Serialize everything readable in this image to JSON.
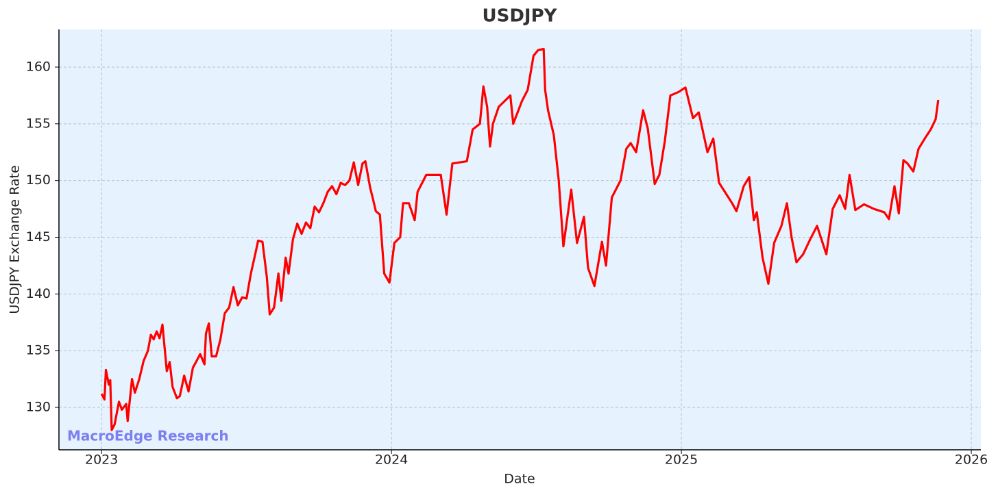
{
  "chart_data": {
    "type": "line",
    "title": "USDJPY",
    "x_label": "Date",
    "y_label": "USDJPY Exchange Rate",
    "watermark": "MacroEdge Research",
    "color": "#ff0000",
    "grid": true,
    "x": [
      2023.0,
      2023.01,
      2023.015,
      2023.025,
      2023.03,
      2023.035,
      2023.045,
      2023.06,
      2023.07,
      2023.085,
      2023.09,
      2023.105,
      2023.115,
      2023.13,
      2023.145,
      2023.16,
      2023.17,
      2023.18,
      2023.19,
      2023.2,
      2023.21,
      2023.225,
      2023.235,
      2023.245,
      2023.26,
      2023.27,
      2023.285,
      2023.3,
      2023.315,
      2023.33,
      2023.34,
      2023.355,
      2023.36,
      2023.37,
      2023.38,
      2023.395,
      2023.41,
      2023.425,
      2023.44,
      2023.455,
      2023.47,
      2023.485,
      2023.5,
      2023.515,
      2023.53,
      2023.54,
      2023.555,
      2023.57,
      2023.58,
      2023.595,
      2023.61,
      2023.62,
      2023.635,
      2023.645,
      2023.66,
      2023.675,
      2023.69,
      2023.705,
      2023.72,
      2023.735,
      2023.75,
      2023.765,
      2023.78,
      2023.795,
      2023.81,
      2023.825,
      2023.84,
      2023.855,
      2023.87,
      2023.885,
      2023.9,
      2023.91,
      2023.927,
      2023.935,
      2023.946,
      2023.96,
      2023.975,
      2023.993,
      2024.01,
      2024.03,
      2024.04,
      2024.06,
      2024.08,
      2024.09,
      2024.12,
      2024.17,
      2024.19,
      2024.21,
      2024.26,
      2024.28,
      2024.305,
      2024.317,
      2024.33,
      2024.34,
      2024.35,
      2024.37,
      2024.39,
      2024.41,
      2024.42,
      2024.45,
      2024.47,
      2024.49,
      2024.506,
      2024.525,
      2024.53,
      2024.54,
      2024.56,
      2024.577,
      2024.593,
      2024.608,
      2024.62,
      2024.64,
      2024.664,
      2024.678,
      2024.7,
      2024.726,
      2024.74,
      2024.76,
      2024.79,
      2024.81,
      2024.825,
      2024.844,
      2024.868,
      2024.884,
      2024.908,
      2024.924,
      2024.943,
      2024.962,
      2024.99,
      2025.014,
      2025.04,
      2025.06,
      2025.09,
      2025.11,
      2025.13,
      2025.15,
      2025.175,
      2025.19,
      2025.215,
      2025.234,
      2025.25,
      2025.26,
      2025.28,
      2025.3,
      2025.32,
      2025.345,
      2025.364,
      2025.38,
      2025.397,
      2025.42,
      2025.444,
      2025.468,
      2025.5,
      2025.522,
      2025.546,
      2025.565,
      2025.58,
      2025.6,
      2025.63,
      2025.664,
      2025.7,
      2025.716,
      2025.735,
      2025.75,
      2025.766,
      2025.78,
      2025.8,
      2025.818,
      2025.842,
      2025.86,
      2025.877,
      2025.886
    ],
    "values": [
      131.2,
      130.7,
      133.3,
      132.0,
      132.4,
      128.0,
      128.5,
      130.5,
      129.8,
      130.3,
      128.8,
      132.5,
      131.3,
      132.5,
      134.1,
      135.0,
      136.4,
      136.0,
      136.7,
      136.1,
      137.3,
      133.2,
      134.0,
      131.8,
      130.8,
      131.0,
      132.8,
      131.4,
      133.5,
      134.2,
      134.7,
      133.8,
      136.5,
      137.4,
      134.5,
      134.5,
      136.0,
      138.3,
      138.8,
      140.6,
      139.0,
      139.7,
      139.6,
      141.8,
      143.5,
      144.7,
      144.6,
      141.5,
      138.2,
      138.8,
      141.8,
      139.4,
      143.2,
      141.8,
      144.8,
      146.2,
      145.3,
      146.3,
      145.8,
      147.7,
      147.2,
      148.0,
      149.0,
      149.5,
      148.8,
      149.8,
      149.6,
      150.0,
      151.6,
      149.6,
      151.5,
      151.7,
      149.3,
      148.5,
      147.3,
      147.0,
      141.8,
      141.0,
      144.5,
      145.0,
      148.0,
      148.0,
      146.5,
      149.0,
      150.5,
      150.5,
      147.0,
      151.5,
      151.7,
      154.5,
      155.0,
      158.3,
      156.5,
      153.0,
      155.0,
      156.5,
      157.0,
      157.5,
      155.0,
      157.0,
      158.0,
      161.0,
      161.5,
      161.6,
      158.0,
      156.2,
      154.0,
      150.0,
      144.2,
      147.0,
      149.2,
      144.5,
      146.8,
      142.3,
      140.7,
      144.6,
      142.5,
      148.5,
      150.0,
      152.8,
      153.3,
      152.5,
      156.2,
      154.6,
      149.7,
      150.5,
      153.5,
      157.5,
      157.8,
      158.2,
      155.5,
      156.0,
      152.5,
      153.7,
      149.8,
      149.0,
      148.0,
      147.3,
      149.5,
      150.3,
      146.5,
      147.2,
      143.2,
      140.9,
      144.5,
      146.0,
      148.0,
      145.0,
      142.8,
      143.5,
      144.8,
      146.0,
      143.5,
      147.5,
      148.7,
      147.5,
      150.5,
      147.4,
      147.9,
      147.5,
      147.2,
      146.6,
      149.5,
      147.1,
      151.8,
      151.5,
      150.8,
      152.8,
      153.8,
      154.5,
      155.4,
      157.1
    ],
    "xlim": [
      2022.853,
      2026.033
    ],
    "xticks": [
      2023,
      2024,
      2025,
      2026
    ],
    "ylim": [
      126.26,
      163.32
    ],
    "yticks": [
      130,
      135,
      140,
      145,
      150,
      155,
      160
    ]
  }
}
